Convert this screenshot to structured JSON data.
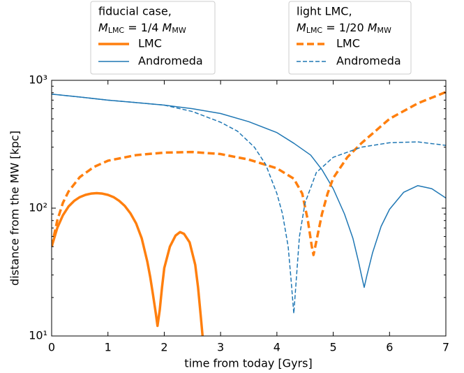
{
  "chart_data": {
    "type": "line",
    "log_y": true,
    "xlabel": "time from today [Gyrs]",
    "ylabel": "distance from the MW  [kpc]",
    "xlim": [
      0,
      7
    ],
    "xticks": [
      0,
      1,
      2,
      3,
      4,
      5,
      6,
      7
    ],
    "ylim": [
      10,
      1000
    ],
    "yticks": [
      {
        "value": 10,
        "label": "10¹"
      },
      {
        "value": 100,
        "label": "10²"
      },
      {
        "value": 1000,
        "label": "10³"
      }
    ],
    "legends": [
      {
        "title": "fiducial case,",
        "subtitle": [
          {
            "text": "M"
          },
          {
            "text": "LMC",
            "sub": true
          },
          {
            "text": " = 1/4 "
          },
          {
            "text": "M"
          },
          {
            "text": "MW",
            "sub": true
          }
        ]
      },
      {
        "title": "light LMC,",
        "subtitle": [
          {
            "text": "M"
          },
          {
            "text": "LMC",
            "sub": true
          },
          {
            "text": " = 1/20 "
          },
          {
            "text": "M"
          },
          {
            "text": "MW",
            "sub": true
          }
        ]
      }
    ],
    "series": [
      {
        "name": "LMC",
        "color": "#ff7f0e",
        "dashed": false,
        "width": 3.5,
        "legend": 0,
        "x": [
          0,
          0.1,
          0.2,
          0.3,
          0.4,
          0.5,
          0.6,
          0.7,
          0.8,
          0.9,
          1.0,
          1.1,
          1.2,
          1.3,
          1.4,
          1.5,
          1.6,
          1.7,
          1.75,
          1.8,
          1.85,
          1.88,
          1.92,
          1.96,
          2.0,
          2.1,
          2.2,
          2.28,
          2.35,
          2.45,
          2.55,
          2.6,
          2.65,
          2.68
        ],
        "values": [
          50,
          70,
          88,
          103,
          114,
          122,
          127,
          130,
          131,
          130,
          127,
          122,
          114,
          104,
          91,
          76,
          58,
          38,
          29,
          21,
          15,
          12,
          16,
          24,
          34,
          50,
          61,
          65,
          63,
          54,
          36,
          24,
          14,
          10
        ]
      },
      {
        "name": "Andromeda",
        "color": "#1f77b4",
        "dashed": false,
        "width": 1.5,
        "legend": 0,
        "x": [
          0,
          0.5,
          1,
          1.5,
          2,
          2.5,
          3,
          3.5,
          4,
          4.3,
          4.6,
          4.8,
          5,
          5.2,
          5.35,
          5.45,
          5.5,
          5.55,
          5.6,
          5.7,
          5.85,
          6,
          6.25,
          6.5,
          6.75,
          7
        ],
        "values": [
          780,
          740,
          700,
          670,
          640,
          600,
          550,
          475,
          390,
          322,
          260,
          200,
          142,
          90,
          58,
          38,
          30,
          24,
          30,
          45,
          72,
          98,
          133,
          150,
          142,
          120
        ]
      },
      {
        "name": "LMC",
        "color": "#ff7f0e",
        "dashed": true,
        "width": 3.5,
        "legend": 1,
        "x": [
          0,
          0.1,
          0.2,
          0.3,
          0.5,
          0.75,
          1,
          1.5,
          2,
          2.5,
          3,
          3.5,
          4,
          4.3,
          4.45,
          4.55,
          4.62,
          4.65,
          4.7,
          4.8,
          4.9,
          5,
          5.25,
          5.5,
          6,
          6.5,
          7
        ],
        "values": [
          50,
          80,
          110,
          135,
          175,
          210,
          235,
          260,
          272,
          275,
          265,
          240,
          205,
          170,
          130,
          80,
          50,
          43,
          55,
          90,
          130,
          172,
          250,
          322,
          500,
          660,
          810
        ]
      },
      {
        "name": "Andromeda",
        "color": "#1f77b4",
        "dashed": true,
        "width": 1.5,
        "legend": 1,
        "x": [
          0,
          0.5,
          1,
          1.5,
          2,
          2.5,
          3,
          3.3,
          3.6,
          3.8,
          4,
          4.1,
          4.2,
          4.25,
          4.3,
          4.35,
          4.4,
          4.5,
          4.7,
          5,
          5.5,
          6,
          6.5,
          7
        ],
        "values": [
          780,
          740,
          700,
          670,
          640,
          570,
          470,
          400,
          300,
          220,
          130,
          90,
          50,
          28,
          15,
          30,
          60,
          110,
          190,
          250,
          300,
          325,
          330,
          310
        ]
      }
    ]
  }
}
